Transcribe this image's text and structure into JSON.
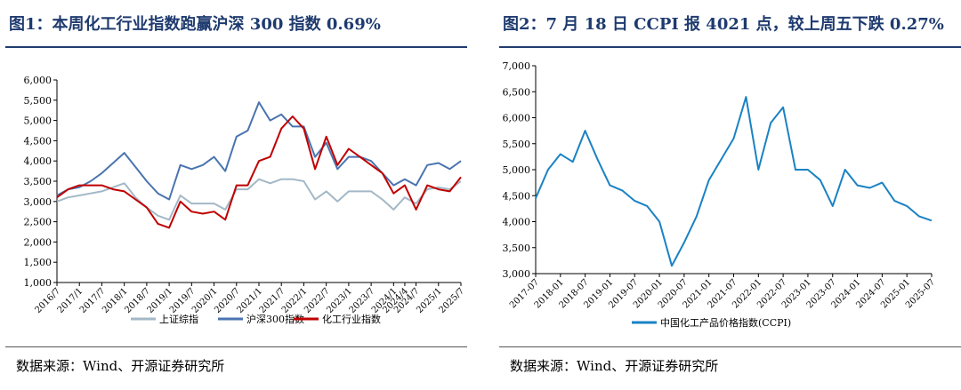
{
  "panels": [
    {
      "title": "图1：本周化工行业指数跑赢沪深 300 指数 0.69%",
      "source": "数据来源：Wind、开源证券研究所"
    },
    {
      "title": "图2：7 月 18 日 CCPI 报 4021 点，较上周五下跌 0.27%",
      "source": "数据来源：Wind、开源证券研究所"
    }
  ],
  "chart_data": [
    {
      "type": "line",
      "title": "",
      "xlabel": "",
      "ylabel": "",
      "x": [
        "2016/7",
        "2016/10",
        "2017/1",
        "2017/4",
        "2017/7",
        "2017/10",
        "2018/1",
        "2018/4",
        "2018/7",
        "2018/10",
        "2019/1",
        "2019/4",
        "2019/7",
        "2019/10",
        "2020/1",
        "2020/4",
        "2020/7",
        "2020/10",
        "2021/1",
        "2021/4",
        "2021/7",
        "2021/10",
        "2022/1",
        "2022/4",
        "2022/7",
        "2022/10",
        "2023/1",
        "2023/4",
        "2023/7",
        "2023/10",
        "2024/1",
        "2024/4",
        "2024/7",
        "2024/10",
        "2025/1",
        "2025/4",
        "2025/7"
      ],
      "x_tick_labels": [
        "2016/7",
        "2017/1",
        "2017/7",
        "2018/1",
        "2018/7",
        "2019/1",
        "2019/7",
        "2020/1",
        "2020/7",
        "2021/1",
        "2021/7",
        "2022/1",
        "2022/7",
        "2023/1",
        "2023/7",
        "2024/1",
        "2024/4",
        "2024/7",
        "2025/1",
        "2025/7"
      ],
      "y_ticks": [
        1000,
        1500,
        2000,
        2500,
        3000,
        3500,
        4000,
        4500,
        5000,
        5500,
        6000
      ],
      "ylim": [
        1000,
        6000
      ],
      "grid": false,
      "legend_position": "bottom",
      "series": [
        {
          "name": "上证综指",
          "color": "#a3b8c6",
          "values": [
            3000,
            3100,
            3150,
            3200,
            3250,
            3350,
            3450,
            3100,
            2850,
            2650,
            2550,
            3150,
            2950,
            2950,
            2950,
            2800,
            3300,
            3300,
            3550,
            3450,
            3550,
            3550,
            3500,
            3050,
            3250,
            3000,
            3250,
            3250,
            3250,
            3050,
            2800,
            3100,
            2950,
            3300,
            3350,
            3300,
            3500
          ]
        },
        {
          "name": "沪深300指数",
          "color": "#4a74b0",
          "values": [
            3150,
            3300,
            3350,
            3500,
            3700,
            3950,
            4200,
            3850,
            3500,
            3200,
            3050,
            3900,
            3800,
            3900,
            4100,
            3750,
            4600,
            4750,
            5450,
            5000,
            5150,
            4850,
            4850,
            4100,
            4450,
            3800,
            4100,
            4100,
            4000,
            3700,
            3400,
            3550,
            3400,
            3900,
            3950,
            3800,
            4000
          ]
        },
        {
          "name": "化工行业指数",
          "color": "#c00000",
          "values": [
            3100,
            3300,
            3400,
            3400,
            3400,
            3300,
            3250,
            3050,
            2850,
            2450,
            2350,
            3000,
            2750,
            2700,
            2750,
            2550,
            3400,
            3400,
            4000,
            4100,
            4800,
            5100,
            4800,
            3800,
            4600,
            3900,
            4300,
            4100,
            3900,
            3700,
            3200,
            3400,
            2800,
            3400,
            3300,
            3250,
            3600
          ]
        }
      ]
    },
    {
      "type": "line",
      "title": "",
      "xlabel": "",
      "ylabel": "",
      "x": [
        "2017-07",
        "2017-10",
        "2018-01",
        "2018-04",
        "2018-07",
        "2018-10",
        "2019-01",
        "2019-04",
        "2019-07",
        "2019-10",
        "2020-01",
        "2020-04",
        "2020-07",
        "2020-10",
        "2021-01",
        "2021-04",
        "2021-07",
        "2021-10",
        "2022-01",
        "2022-04",
        "2022-07",
        "2022-10",
        "2023-01",
        "2023-04",
        "2023-07",
        "2023-10",
        "2024-01",
        "2024-04",
        "2024-07",
        "2024-10",
        "2025-01",
        "2025-04",
        "2025-07"
      ],
      "x_tick_labels": [
        "2017-07",
        "2018-01",
        "2018-07",
        "2019-01",
        "2019-07",
        "2020-01",
        "2020-07",
        "2021-01",
        "2021-07",
        "2022-01",
        "2022-07",
        "2023-01",
        "2023-07",
        "2024-01",
        "2024-07",
        "2025-01",
        "2025-07"
      ],
      "y_ticks": [
        3000,
        3500,
        4000,
        4500,
        5000,
        5500,
        6000,
        6500,
        7000
      ],
      "ylim": [
        3000,
        7000
      ],
      "grid": false,
      "legend_position": "bottom",
      "series": [
        {
          "name": "中国化工产品价格指数(CCPI)",
          "color": "#1a82c4",
          "values": [
            4450,
            5000,
            5300,
            5150,
            5750,
            5200,
            4700,
            4600,
            4400,
            4300,
            4000,
            3150,
            3600,
            4100,
            4800,
            5200,
            5600,
            6400,
            5000,
            5900,
            6200,
            5000,
            5000,
            4800,
            4300,
            5000,
            4700,
            4650,
            4750,
            4400,
            4300,
            4100,
            4021
          ]
        }
      ]
    }
  ]
}
